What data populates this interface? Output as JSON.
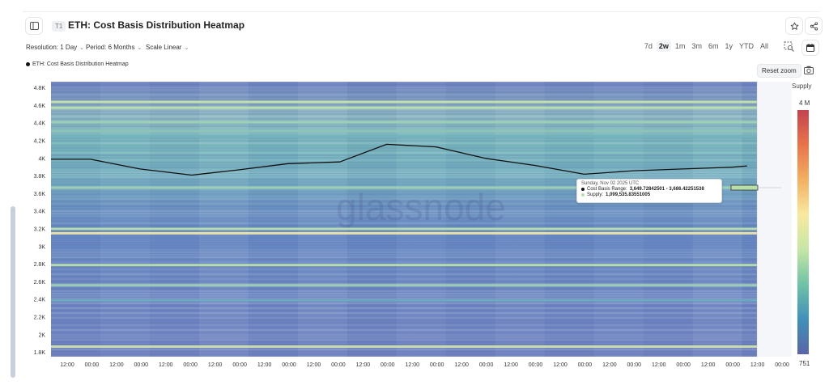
{
  "header": {
    "badge": "T1",
    "title": "ETH: Cost Basis Distribution Heatmap"
  },
  "controls": {
    "resolution": "Resolution: 1 Day",
    "period": "Period: 6 Months",
    "scale": "Scale Linear"
  },
  "range_buttons": [
    {
      "label": "7d",
      "active": false
    },
    {
      "label": "2w",
      "active": true
    },
    {
      "label": "1m",
      "active": false
    },
    {
      "label": "3m",
      "active": false
    },
    {
      "label": "6m",
      "active": false
    },
    {
      "label": "1y",
      "active": false
    },
    {
      "label": "YTD",
      "active": false
    },
    {
      "label": "All",
      "active": false
    }
  ],
  "reset_zoom": "Reset zoom",
  "colorbar": {
    "label": "Supply",
    "max_label": "4 M",
    "min_label": "751"
  },
  "watermark": "glassnode",
  "tooltip": {
    "date": "Sunday, Nov 02 2025 UTC",
    "range_label": "Cost Basis Range:",
    "range_value": "3,649.72842501 - 3,686.42251538",
    "supply_label": "Supply:",
    "supply_value": "1,099,535.83551005"
  },
  "colors": {
    "line": "#111111",
    "tooltip_supply_dot": "#b9dfa8"
  },
  "chart_data": {
    "type": "heatmap",
    "legend": [
      "ETH: Cost Basis Distribution Heatmap"
    ],
    "y_ticks": [
      "1.8K",
      "2K",
      "2.2K",
      "2.4K",
      "2.6K",
      "2.8K",
      "3K",
      "3.2K",
      "3.4K",
      "3.6K",
      "3.8K",
      "4K",
      "4.2K",
      "4.4K",
      "4.6K",
      "4.8K"
    ],
    "ylim": [
      1750,
      4870
    ],
    "x_ticks": [
      "12:00",
      "00:00",
      "12:00",
      "00:00",
      "12:00",
      "00:00",
      "12:00",
      "00:00",
      "12:00",
      "00:00",
      "12:00",
      "00:00",
      "12:00",
      "00:00",
      "12:00",
      "00:00",
      "12:00",
      "00:00",
      "12:00",
      "00:00",
      "12:00",
      "00:00",
      "12:00",
      "00:00",
      "12:00",
      "00:00",
      "12:00",
      "00:00",
      "12:00",
      "00:00"
    ],
    "x_data_span": [
      0,
      28.6
    ],
    "x_axis_span": [
      0,
      29.5
    ],
    "series": [
      {
        "name": "ETH: Cost Basis Distribution Heatmap",
        "x": [
          0,
          1.6,
          3.6,
          5.7,
          7.6,
          9.6,
          11.7,
          13.6,
          15.6,
          17.6,
          19.6,
          21.6,
          23.6,
          25.6,
          27.6,
          28.2
        ],
        "y": [
          3990,
          3990,
          3880,
          3810,
          3870,
          3940,
          3960,
          4160,
          4130,
          4000,
          3920,
          3820,
          3860,
          3880,
          3900,
          3915
        ]
      }
    ],
    "bands": [
      {
        "y": 4640,
        "level": 0.6
      },
      {
        "y": 4575,
        "level": 0.55
      },
      {
        "y": 4410,
        "level": 0.45
      },
      {
        "y": 4310,
        "level": 0.4
      },
      {
        "y": 4250,
        "level": 0.3
      },
      {
        "y": 3668,
        "level": 0.45
      },
      {
        "y": 3200,
        "level": 0.55
      },
      {
        "y": 3150,
        "level": 0.8
      },
      {
        "y": 2790,
        "level": 0.55
      },
      {
        "y": 2560,
        "level": 0.45
      },
      {
        "y": 2390,
        "level": 0.25
      },
      {
        "y": 1865,
        "level": 0.65
      }
    ],
    "highlight": {
      "x": 28.6,
      "y": 3668
    }
  }
}
